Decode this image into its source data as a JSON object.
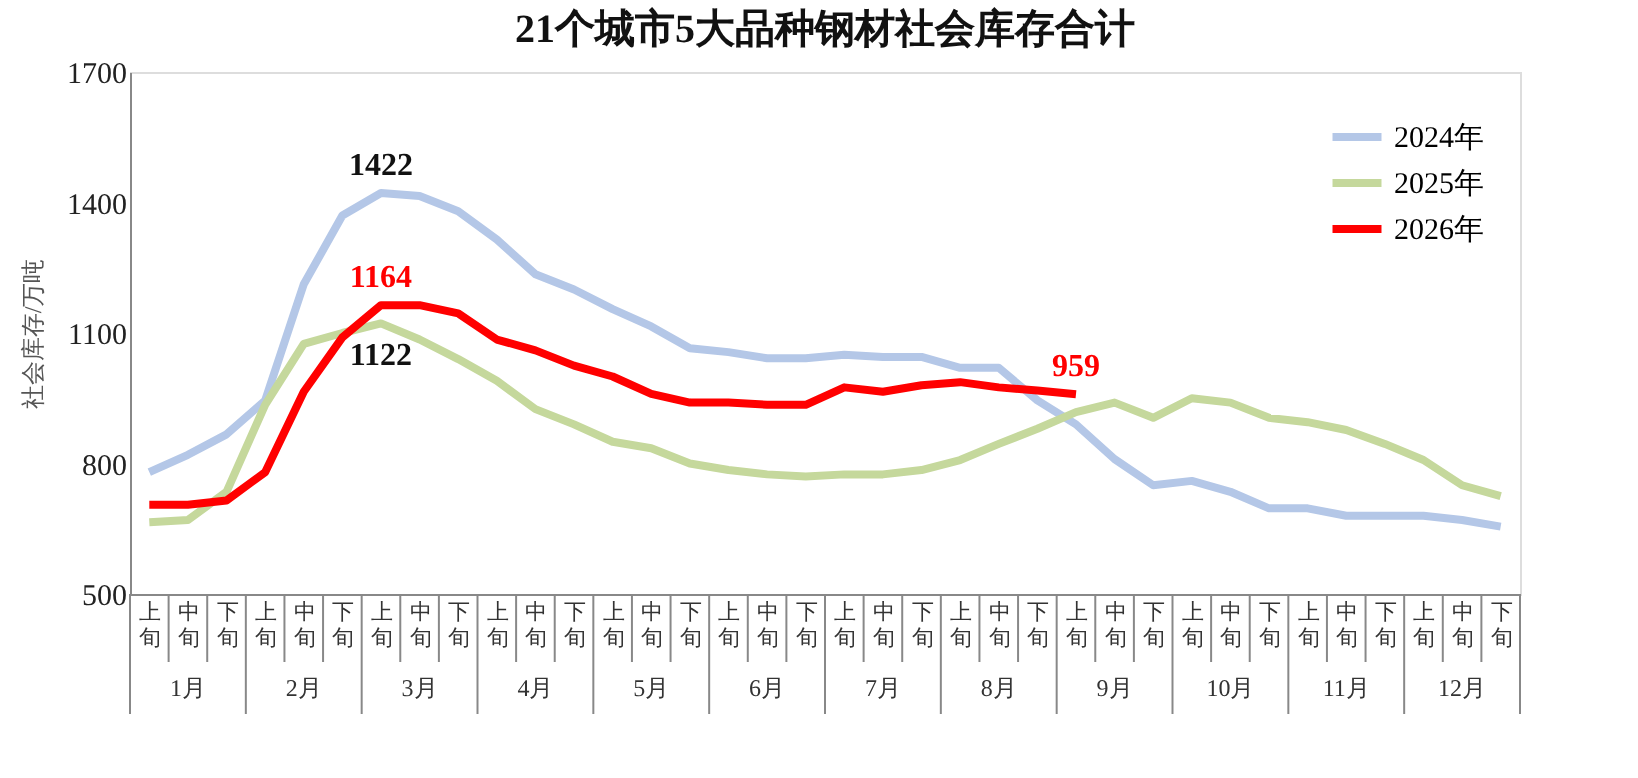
{
  "chart_data": {
    "type": "line",
    "title": "21个城市5大品种钢材社会库存合计",
    "ylabel": "社会库存/万吨",
    "categories": [
      "上旬",
      "中旬",
      "下旬",
      "上旬",
      "中旬",
      "下旬",
      "上旬",
      "中旬",
      "下旬",
      "上旬",
      "中旬",
      "下旬",
      "上旬",
      "中旬",
      "下旬",
      "上旬",
      "中旬",
      "下旬",
      "上旬",
      "中旬",
      "下旬",
      "上旬",
      "中旬",
      "下旬",
      "上旬",
      "中旬",
      "下旬",
      "上旬",
      "中旬",
      "下旬",
      "上旬",
      "中旬",
      "下旬",
      "上旬",
      "中旬",
      "下旬"
    ],
    "annotations": [
      "1月",
      "2月",
      "3月",
      "4月",
      "5月",
      "6月",
      "7月",
      "8月",
      "9月",
      "10月",
      "11月",
      "12月"
    ],
    "ylim": [
      500,
      1700
    ],
    "yticks": [
      500,
      800,
      1100,
      1400,
      1700
    ],
    "grid": false,
    "legend": "top right",
    "marker": "none",
    "line_style": "solid",
    "series": [
      {
        "name": "2024年",
        "color": "#b4c7e7",
        "values": [
          780,
          820,
          867,
          945,
          1212,
          1370,
          1422,
          1415,
          1380,
          1315,
          1235,
          1200,
          1155,
          1115,
          1065,
          1056,
          1042,
          1042,
          1050,
          1045,
          1045,
          1020,
          1020,
          945,
          890,
          810,
          750,
          760,
          735,
          697,
          697,
          680,
          680,
          680,
          670,
          655
        ],
        "value_labels": [
          null,
          null,
          null,
          null,
          null,
          null,
          "1422",
          null,
          null,
          null,
          null,
          null,
          null,
          null,
          null,
          null,
          null,
          null,
          null,
          null,
          null,
          null,
          null,
          null,
          null,
          null,
          null,
          null,
          null,
          null,
          null,
          null,
          null,
          null,
          null,
          null
        ]
      },
      {
        "name": "2025年",
        "color": "#c5d89c",
        "values": [
          665,
          670,
          735,
          935,
          1075,
          1100,
          1122,
          1085,
          1040,
          990,
          925,
          890,
          850,
          835,
          800,
          785,
          775,
          770,
          775,
          775,
          785,
          808,
          845,
          880,
          918,
          940,
          905,
          950,
          940,
          905,
          895,
          877,
          845,
          808,
          750,
          725
        ],
        "value_labels": [
          null,
          null,
          null,
          null,
          null,
          null,
          "1122",
          null,
          null,
          null,
          null,
          null,
          null,
          null,
          null,
          null,
          null,
          null,
          null,
          null,
          null,
          null,
          null,
          null,
          null,
          null,
          null,
          null,
          null,
          null,
          null,
          null,
          null,
          null,
          null,
          null
        ]
      },
      {
        "name": "2026年",
        "color": "#ff0000",
        "values": [
          705,
          705,
          715,
          780,
          965,
          1090,
          1164,
          1164,
          1145,
          1085,
          1060,
          1025,
          1000,
          960,
          940,
          940,
          935,
          935,
          975,
          965,
          980,
          987,
          975,
          968,
          959,
          null,
          null,
          null,
          null,
          null,
          null,
          null,
          null,
          null,
          null,
          null
        ],
        "value_labels": [
          null,
          null,
          null,
          null,
          null,
          null,
          "1164",
          null,
          null,
          null,
          null,
          null,
          null,
          null,
          null,
          null,
          null,
          null,
          null,
          null,
          null,
          null,
          null,
          null,
          "959",
          null,
          null,
          null,
          null,
          null,
          null,
          null,
          null,
          null,
          null,
          null
        ]
      }
    ]
  }
}
